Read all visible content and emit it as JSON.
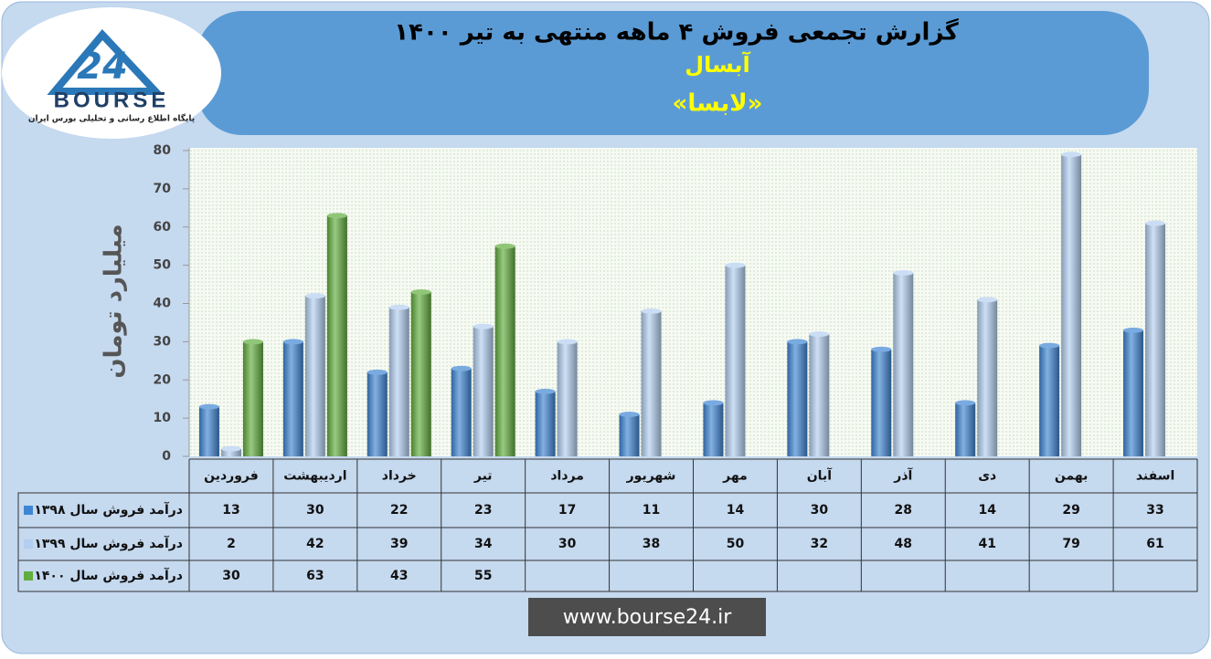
{
  "chart_data": {
    "type": "bar",
    "title": "گزارش تجمعی فروش ۴ ماهه منتهی به تیر ۱۴۰۰",
    "subtitle": "آبسال",
    "symbol": "«لابسا»",
    "y_label": "میلیارد تومان",
    "categories": [
      "فروردین",
      "اردیبهشت",
      "خرداد",
      "تیر",
      "مرداد",
      "شهریور",
      "مهر",
      "آبان",
      "آذر",
      "دی",
      "بهمن",
      "اسفند"
    ],
    "series": [
      {
        "name": "درآمد فروش سال ۱۳۹۸",
        "color": "#3f86d2",
        "values": [
          13,
          30,
          22,
          23,
          17,
          11,
          14,
          30,
          28,
          14,
          29,
          33
        ]
      },
      {
        "name": "درآمد فروش سال ۱۳۹۹",
        "color": "#b3cff0",
        "values": [
          2,
          42,
          39,
          34,
          30,
          38,
          50,
          32,
          48,
          41,
          79,
          61
        ]
      },
      {
        "name": "درآمد فروش سال ۱۴۰۰",
        "color": "#62ad3f",
        "values": [
          30,
          63,
          43,
          55,
          null,
          null,
          null,
          null,
          null,
          null,
          null,
          null
        ]
      }
    ],
    "ylim": [
      0,
      80
    ],
    "yticks": [
      0,
      10,
      20,
      30,
      40,
      50,
      60,
      70,
      80
    ],
    "grid": false
  },
  "logo": {
    "number": "24",
    "name": "BOURSE",
    "tagline": "پایگاه اطلاع رسانی و تحلیلی بورس ایران"
  },
  "footer": {
    "url": "www.bourse24.ir"
  }
}
